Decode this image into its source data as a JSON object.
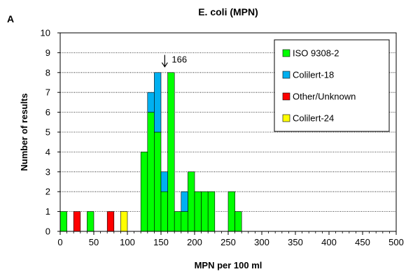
{
  "panel_label": "A",
  "chart_data": {
    "type": "bar",
    "stacked": true,
    "title": "E. coli (MPN)",
    "xlabel": "MPN per 100 ml",
    "ylabel": "Number of results",
    "xlim": [
      0,
      500
    ],
    "ylim": [
      0,
      10
    ],
    "bin_width": 10,
    "x_ticks": [
      0,
      50,
      100,
      150,
      200,
      250,
      300,
      350,
      400,
      450,
      500
    ],
    "y_ticks": [
      0,
      1,
      2,
      3,
      4,
      5,
      6,
      7,
      8,
      9,
      10
    ],
    "grid": "horizontal dotted",
    "legend_position": "top-right",
    "series": [
      {
        "name": "ISO 9308-2",
        "color": "#00ff00",
        "bins": [
          {
            "x": 0,
            "value": 1
          },
          {
            "x": 40,
            "value": 1
          },
          {
            "x": 120,
            "value": 4
          },
          {
            "x": 130,
            "value": 6
          },
          {
            "x": 140,
            "value": 5
          },
          {
            "x": 150,
            "value": 2
          },
          {
            "x": 160,
            "value": 8
          },
          {
            "x": 170,
            "value": 1
          },
          {
            "x": 180,
            "value": 1
          },
          {
            "x": 190,
            "value": 3
          },
          {
            "x": 200,
            "value": 2
          },
          {
            "x": 210,
            "value": 2
          },
          {
            "x": 220,
            "value": 2
          },
          {
            "x": 250,
            "value": 2
          },
          {
            "x": 260,
            "value": 1
          }
        ]
      },
      {
        "name": "Colilert-18",
        "color": "#00b0f0",
        "bins": [
          {
            "x": 130,
            "value": 1
          },
          {
            "x": 140,
            "value": 3
          },
          {
            "x": 150,
            "value": 1
          },
          {
            "x": 180,
            "value": 1
          }
        ]
      },
      {
        "name": "Other/Unknown",
        "color": "#ff0000",
        "bins": [
          {
            "x": 20,
            "value": 1
          },
          {
            "x": 70,
            "value": 1
          }
        ]
      },
      {
        "name": "Colilert-24",
        "color": "#ffff00",
        "bins": [
          {
            "x": 90,
            "value": 1
          }
        ]
      }
    ],
    "annotations": [
      {
        "text": "166",
        "x": 166,
        "y": 8.5,
        "arrow": "down"
      }
    ]
  }
}
